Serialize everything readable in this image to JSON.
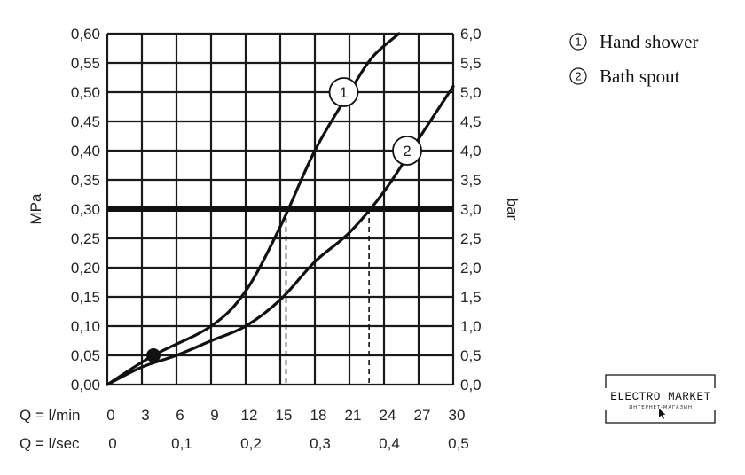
{
  "chart_data": {
    "type": "line",
    "ylabel": "MPa",
    "y2label": "bar",
    "ylim": [
      0,
      0.6
    ],
    "y2lim": [
      0,
      6
    ],
    "xlim": [
      0,
      30
    ],
    "y_ticks": [
      "0,00",
      "0,05",
      "0,10",
      "0,15",
      "0,20",
      "0,25",
      "0,30",
      "0,35",
      "0,40",
      "0,45",
      "0,50",
      "0,55",
      "0,60"
    ],
    "y2_ticks": [
      "0,0",
      "0,5",
      "1,0",
      "1,5",
      "2,0",
      "2,5",
      "3,0",
      "3,5",
      "4,0",
      "4,5",
      "5,0",
      "5,5",
      "6,0"
    ],
    "x_label_lmin": "Q = l/min",
    "x_ticks_lmin": [
      "0",
      "3",
      "6",
      "9",
      "12",
      "15",
      "18",
      "21",
      "24",
      "27",
      "30"
    ],
    "x_label_lsec": "Q = l/sec",
    "x_ticks_lsec": [
      {
        "value": 0,
        "label": "0"
      },
      {
        "value": 6,
        "label": "0,1"
      },
      {
        "value": 12,
        "label": "0,2"
      },
      {
        "value": 18,
        "label": "0,3"
      },
      {
        "value": 24,
        "label": "0,4"
      },
      {
        "value": 30,
        "label": "0,5"
      }
    ],
    "reference_line": {
      "y": 0.3
    },
    "marker_point": {
      "x": 4,
      "y": 0.05
    },
    "series": [
      {
        "name": "1",
        "x": [
          0,
          4,
          9,
          12,
          15,
          18,
          21,
          23,
          25.3
        ],
        "y": [
          0,
          0.05,
          0.1,
          0.16,
          0.27,
          0.4,
          0.5,
          0.56,
          0.6
        ]
      },
      {
        "name": "2",
        "x": [
          0,
          3,
          6,
          9,
          12,
          15,
          18,
          21,
          24,
          27,
          30
        ],
        "y": [
          0,
          0.03,
          0.05,
          0.075,
          0.1,
          0.145,
          0.21,
          0.26,
          0.33,
          0.42,
          0.51
        ]
      }
    ],
    "curve_labels": [
      {
        "text": "1",
        "x": 20.5,
        "y": 0.5
      },
      {
        "text": "2",
        "x": 26,
        "y": 0.4
      }
    ],
    "drop_lines": [
      15.5,
      22.7
    ]
  },
  "legend": [
    {
      "num": "1",
      "label": "Hand shower"
    },
    {
      "num": "2",
      "label": "Bath spout"
    }
  ],
  "logo": {
    "text": "ELECTRO MARKET",
    "subtext": "ИНТЕРНЕТ-МАГАЗИН"
  }
}
